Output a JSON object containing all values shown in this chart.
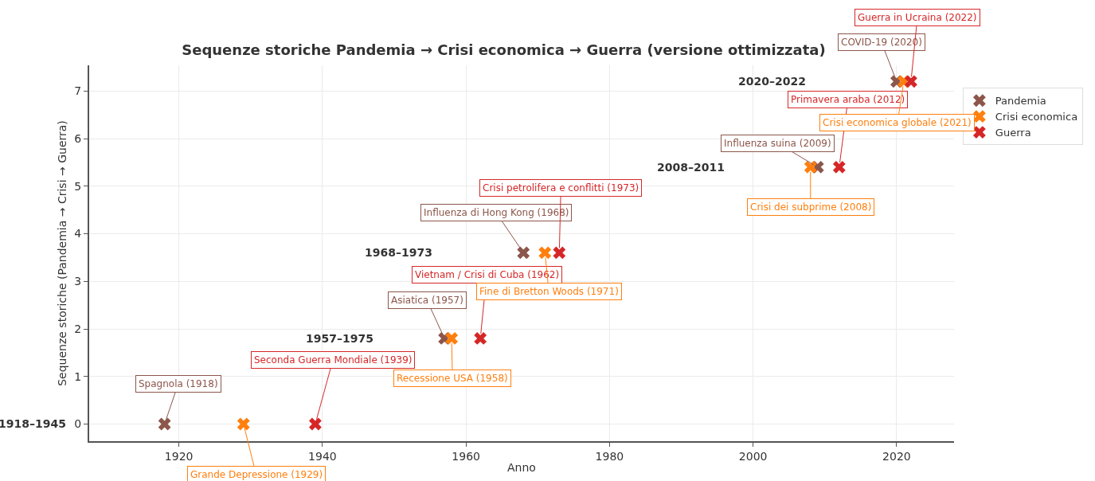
{
  "chart_data": {
    "type": "scatter",
    "title": "Sequenze storiche Pandemia → Crisi economica → Guerra (versione ottimizzata)",
    "xlabel": "Anno",
    "ylabel": "Sequenze storiche (Pandemia → Crisi → Guerra)",
    "series": [
      {
        "name": "Pandemia",
        "color": "#8c564b",
        "x": [
          1918,
          1957,
          1968,
          2009,
          2020
        ],
        "values": [
          0,
          1.8,
          3.6,
          5.4,
          7.2
        ]
      },
      {
        "name": "Crisi economica",
        "color": "#ff7f0e",
        "x": [
          1929,
          1958,
          1971,
          2008,
          2021
        ],
        "values": [
          0,
          1.8,
          3.6,
          5.4,
          7.2
        ]
      },
      {
        "name": "Guerra",
        "color": "#d62728",
        "x": [
          1939,
          1962,
          1973,
          2012,
          2022
        ],
        "values": [
          0,
          1.8,
          3.6,
          5.4,
          7.2
        ]
      }
    ],
    "annotations": [
      {
        "text": "Spagnola (1918)",
        "x": 1918,
        "y": 0
      },
      {
        "text": "Grande Depressione (1929)",
        "x": 1929,
        "y": 0
      },
      {
        "text": "Seconda Guerra Mondiale (1939)",
        "x": 1939,
        "y": 0
      },
      {
        "text": "Asiatica (1957)",
        "x": 1957,
        "y": 1.8
      },
      {
        "text": "Recessione USA (1958)",
        "x": 1958,
        "y": 1.8
      },
      {
        "text": "Vietnam / Crisi di Cuba (1962)",
        "x": 1962,
        "y": 1.8
      },
      {
        "text": "Influenza di Hong Kong (1968)",
        "x": 1968,
        "y": 3.6
      },
      {
        "text": "Fine di Bretton Woods (1971)",
        "x": 1971,
        "y": 3.6
      },
      {
        "text": "Crisi petrolifera e conflitti (1973)",
        "x": 1973,
        "y": 3.6
      },
      {
        "text": "Influenza suina (2009)",
        "x": 2009,
        "y": 5.4
      },
      {
        "text": "Crisi dei subprime (2008)",
        "x": 2008,
        "y": 5.4
      },
      {
        "text": "Primavera araba (2012)",
        "x": 2012,
        "y": 5.4
      },
      {
        "text": "COVID-19 (2020)",
        "x": 2020,
        "y": 7.2
      },
      {
        "text": "Crisi economica globale (2021)",
        "x": 2021,
        "y": 7.2
      },
      {
        "text": "Guerra in Ucraina (2022)",
        "x": 2022,
        "y": 7.2
      },
      "1918–1945",
      "1957–1975",
      "1968–1973",
      "2008–2011",
      "2020–2022"
    ],
    "xlim": [
      1907.5,
      2028
    ],
    "xticks": [
      1920,
      1940,
      1960,
      1980,
      2000,
      2020
    ],
    "ylim": [
      -0.36,
      7.54
    ],
    "yticks": [
      0,
      1,
      2,
      3,
      4,
      5,
      6,
      7
    ],
    "grid": true,
    "legend": "top right",
    "marker": "cross"
  }
}
